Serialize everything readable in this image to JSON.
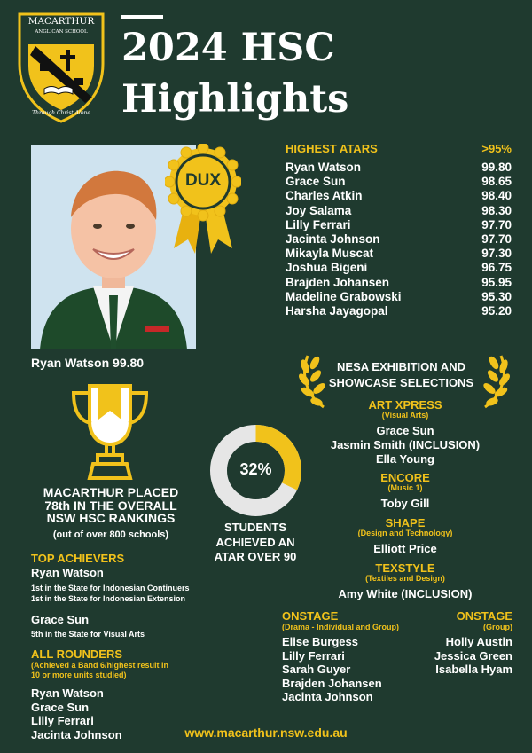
{
  "logo": {
    "name": "MACARTHUR",
    "subtitle": "ANGLICAN SCHOOL",
    "motto": "Through Christ Alone"
  },
  "title": {
    "line1": "2024 HSC",
    "line2": "Highlights"
  },
  "dux": {
    "badge": "DUX",
    "caption": "Ryan Watson 99.80"
  },
  "atars": {
    "heading": "HIGHEST ATARS",
    "threshold": ">95%",
    "list": [
      {
        "name": "Ryan Watson",
        "score": "99.80"
      },
      {
        "name": "Grace Sun",
        "score": "98.65"
      },
      {
        "name": "Charles Atkin",
        "score": "98.40"
      },
      {
        "name": "Joy Salama",
        "score": "98.30"
      },
      {
        "name": "Lilly Ferrari",
        "score": "97.70"
      },
      {
        "name": "Jacinta Johnson",
        "score": "97.70"
      },
      {
        "name": "Mikayla Muscat",
        "score": "97.30"
      },
      {
        "name": "Joshua Bigeni",
        "score": "96.75"
      },
      {
        "name": "Brajden Johansen",
        "score": "95.95"
      },
      {
        "name": "Madeline Grabowski",
        "score": "95.30"
      },
      {
        "name": "Harsha Jayagopal",
        "score": "95.20"
      }
    ]
  },
  "nesa": {
    "title_line1": "NESA EXHIBITION AND",
    "title_line2": "SHOWCASE SELECTIONS",
    "art": {
      "heading": "ART XPRESS",
      "sub": "(Visual Arts)",
      "names": [
        "Grace Sun",
        "Jasmin Smith (INCLUSION)",
        "Ella Young"
      ]
    },
    "encore": {
      "heading": "ENCORE",
      "sub": "(Music 1)",
      "names": [
        "Toby Gill"
      ]
    },
    "shape": {
      "heading": "SHAPE",
      "sub": "(Design and Technology)",
      "names": [
        "Elliott Price"
      ]
    },
    "textstyle": {
      "heading": "TEXSTYLE",
      "sub": "(Textiles and Design)",
      "names": [
        "Amy White (INCLUSION)"
      ]
    },
    "onstage1": {
      "heading": "ONSTAGE",
      "sub": "(Drama - Individual and Group)",
      "names": [
        "Elise Burgess",
        "Lilly Ferrari",
        "Sarah Guyer",
        "Brajden Johansen",
        "Jacinta Johnson"
      ]
    },
    "onstage2": {
      "heading": "ONSTAGE",
      "sub": "(Group)",
      "names": [
        "Holly Austin",
        "Jessica Green",
        "Isabella Hyam"
      ]
    }
  },
  "ranking": {
    "line1": "MACARTHUR PLACED",
    "line2": "78th IN THE OVERALL",
    "line3": "NSW HSC RANKINGS",
    "sub": "(out of over 800 schools)"
  },
  "stat": {
    "percent_label": "32%",
    "percent_value": 32,
    "caption_line1": "STUDENTS",
    "caption_line2": "ACHIEVED AN",
    "caption_line3": "ATAR OVER 90",
    "colors": {
      "fill": "#f1c21b",
      "rest": "#e6e6e6"
    }
  },
  "top_achievers": {
    "heading": "TOP ACHIEVERS",
    "people": [
      {
        "name": "Ryan Watson",
        "notes": [
          "1st in the State for Indonesian Continuers",
          "1st in the State for Indonesian Extension"
        ]
      },
      {
        "name": "Grace Sun",
        "notes": [
          "5th in the State for Visual Arts"
        ]
      }
    ]
  },
  "all_rounders": {
    "heading": "ALL ROUNDERS",
    "sub_line1": "(Achieved a Band 6/highest result in",
    "sub_line2": "10 or more units studied)",
    "names": [
      "Ryan Watson",
      "Grace Sun",
      "Lilly Ferrari",
      "Jacinta Johnson"
    ]
  },
  "website": "www.macarthur.nsw.edu.au",
  "colors": {
    "background": "#1f3a2f",
    "accent": "#f1c21b",
    "text": "#ffffff"
  }
}
